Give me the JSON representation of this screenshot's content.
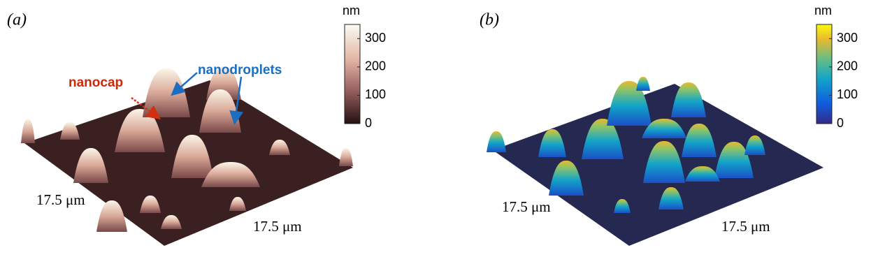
{
  "panels": [
    {
      "label": "(a)",
      "colorbar": {
        "unit": "nm",
        "range": [
          0,
          350
        ],
        "ticks": [
          0,
          100,
          200,
          300
        ]
      },
      "axis_labels": [
        "17.5 μm",
        "17.5 μm"
      ],
      "annotations": [
        "nanocap",
        "nanodroplets"
      ]
    },
    {
      "label": "(b)",
      "colorbar": {
        "unit": "nm",
        "range": [
          0,
          350
        ],
        "ticks": [
          0,
          100,
          200,
          300
        ]
      },
      "axis_labels": [
        "17.5 μm",
        "17.5 μm"
      ]
    }
  ]
}
